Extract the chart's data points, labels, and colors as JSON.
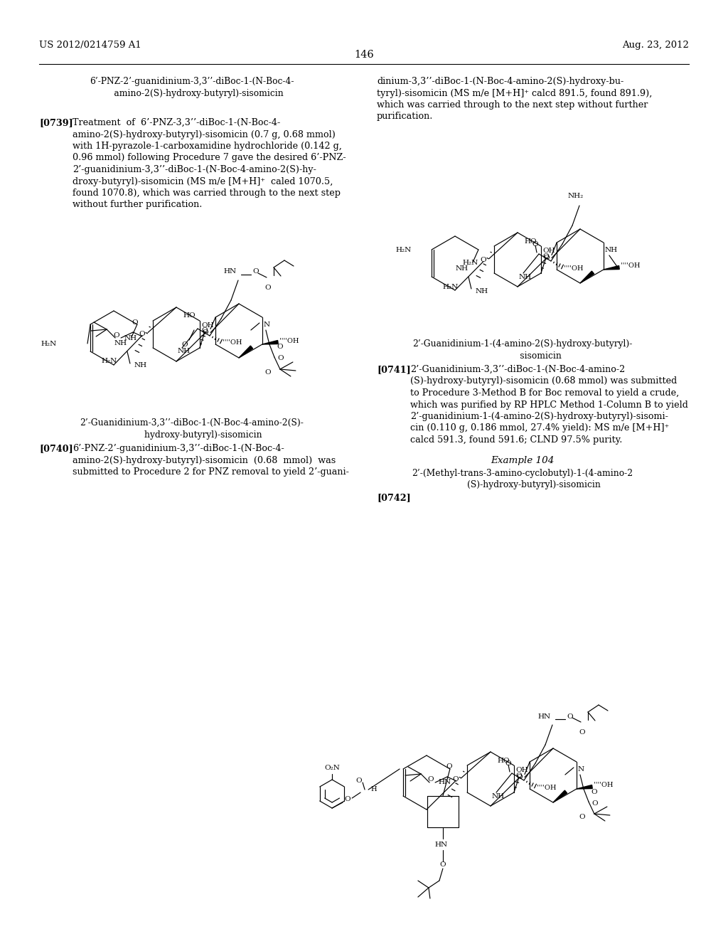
{
  "background_color": "#ffffff",
  "header_left": "US 2012/0214759 A1",
  "header_right": "Aug. 23, 2012",
  "page_number": "146",
  "col1_title": "6’-PNZ-2’-guanidinium-3,3’’-diBoc-1-(N-Boc-4-\n     amino-2(S)-hydroxy-butyryl)-sisomicin",
  "col2_top": "dinium-3,3’’-diBoc-1-(N-Boc-4-amino-2(S)-hydroxy-bu-\ntyryl)-sisomicin (MS m/e [M+H]⁺ calcd 891.5, found 891.9),\nwhich was carried through to the next step without further\npurification.",
  "p0739_body": "Treatment  of  6’-PNZ-3,3’’-diBoc-1-(N-Boc-4-\namino-2(S)-hydroxy-butyryl)-sisomicin (0.7 g, 0.68 mmol)\nwith 1H-pyrazole-1-carboxamidine hydrochloride (0.142 g,\n0.96 mmol) following Procedure 7 gave the desired 6’-PNZ-\n2’-guanidinium-3,3’’-diBoc-1-(N-Boc-4-amino-2(S)-hy-\ndroxy-butyryl)-sisomicin (MS m/e [M+H]⁺  caled 1070.5,\nfound 1070.8), which was carried through to the next step\nwithout further purification.",
  "struct1_cap": "2’-Guanidinium-3,3’’-diBoc-1-(N-Boc-4-amino-2(S)-\n        hydroxy-butyryl)-sisomicin",
  "p0740_body": "6’-PNZ-2’-guanidinium-3,3’’-diBoc-1-(N-Boc-4-\namino-2(S)-hydroxy-butyryl)-sisomicin  (0.68  mmol)  was\nsubmitted to Procedure 2 for PNZ removal to yield 2’-guani-",
  "struct2_cap": "2’-Guanidinium-1-(4-amino-2(S)-hydroxy-butyryl)-\n             sisomicin",
  "p0741_body": "2’-Guanidinium-3,3’’-diBoc-1-(N-Boc-4-amino-2\n(S)-hydroxy-butyryl)-sisomicin (0.68 mmol) was submitted\nto Procedure 3-Method B for Boc removal to yield a crude,\nwhich was purified by RP HPLC Method 1-Column B to yield\n2’-guanidinium-1-(4-amino-2(S)-hydroxy-butyryl)-sisomi-\ncin (0.110 g, 0.186 mmol, 27.4% yield): MS m/e [M+H]⁺\ncalcd 591.3, found 591.6; CLND 97.5% purity.",
  "ex104_header": "Example 104",
  "ex104_title": "2’-(Methyl-trans-3-amino-cyclobutyl)-1-(4-amino-2\n        (S)-hydroxy-butyryl)-sisomicin",
  "fs_body": 9.2,
  "fs_header": 9.5,
  "fs_caption": 8.8,
  "fs_page": 10.5
}
